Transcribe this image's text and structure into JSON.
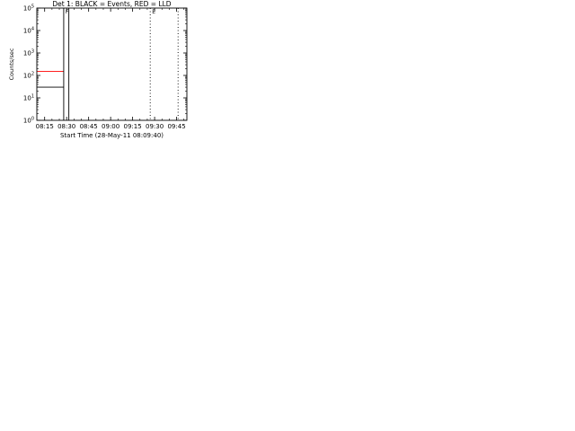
{
  "figure": {
    "title_format": "Det {n}: BLACK = Events, RED = LLD",
    "xlabel": "Start Time (28-May-11 08:09:40)",
    "ylabel": "Counts/sec",
    "x_ticks": [
      "08:15",
      "08:30",
      "08:45",
      "09:00",
      "09:15",
      "09:30",
      "09:45"
    ],
    "marker_labels": [
      "F",
      "E"
    ],
    "colors": {
      "events": "#000000",
      "lld": "#ff0000",
      "axes": "#000000",
      "background": "#ffffff"
    }
  },
  "chart_data": [
    {
      "type": "line",
      "title": "Det 1: BLACK = Events, RED = LLD",
      "xlabel": "Start Time (28-May-11 08:09:40)",
      "ylabel": "Counts/sec",
      "y_scale": "log",
      "ylim": [
        1,
        100000
      ],
      "y_ticks": [
        "10^0",
        "10^1",
        "10^2",
        "10^3",
        "10^4",
        "10^5"
      ],
      "xlim": [
        "08:09:40",
        "09:52"
      ],
      "vertical_lines": {
        "solid": [
          "08:28",
          "08:31:30"
        ],
        "dotted": [
          "09:27",
          "09:46"
        ]
      },
      "series": [
        {
          "name": "BLACK = Events",
          "x": [
            "08:10",
            "08:13",
            "08:16",
            "08:19",
            "08:22",
            "08:25",
            "08:27",
            "08:28"
          ],
          "values": [
            30,
            30,
            30,
            30,
            30,
            30,
            30,
            30
          ]
        },
        {
          "name": "RED = LLD",
          "x": [
            "08:10",
            "08:13",
            "08:16",
            "08:19",
            "08:22",
            "08:25",
            "08:27",
            "08:28"
          ],
          "values": [
            150,
            150,
            150,
            150,
            150,
            150,
            150,
            150
          ]
        }
      ]
    }
  ]
}
